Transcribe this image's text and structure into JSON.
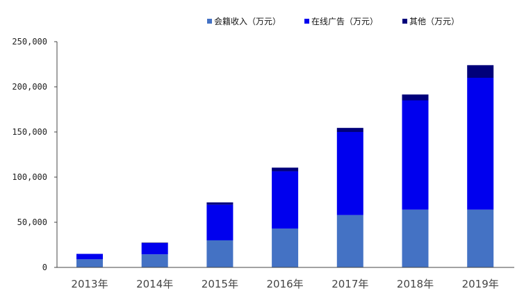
{
  "chart_data": {
    "type": "bar",
    "stacked": true,
    "title": "",
    "xlabel": "",
    "ylabel": "",
    "categories": [
      "2013年",
      "2014年",
      "2015年",
      "2016年",
      "2017年",
      "2018年",
      "2019年"
    ],
    "series": [
      {
        "name": "会籍收入（万元）",
        "color": "#4472C4",
        "values": [
          9000,
          14500,
          30000,
          43000,
          58000,
          64000,
          64000
        ]
      },
      {
        "name": "在线广告（万元）",
        "color": "#0000EE",
        "values": [
          6000,
          12500,
          39500,
          63500,
          92000,
          121000,
          146000
        ]
      },
      {
        "name": "其他（万元）",
        "color": "#00007A",
        "values": [
          0,
          500,
          2500,
          4000,
          4500,
          6500,
          14000
        ]
      }
    ],
    "ylim": [
      0,
      250000
    ],
    "yticks": [
      0,
      50000,
      100000,
      150000,
      200000,
      250000
    ],
    "ytick_labels": [
      "0",
      "50,000",
      "100,000",
      "150,000",
      "200,000",
      "250,000"
    ],
    "grid": false,
    "legend_position": "top-right"
  }
}
